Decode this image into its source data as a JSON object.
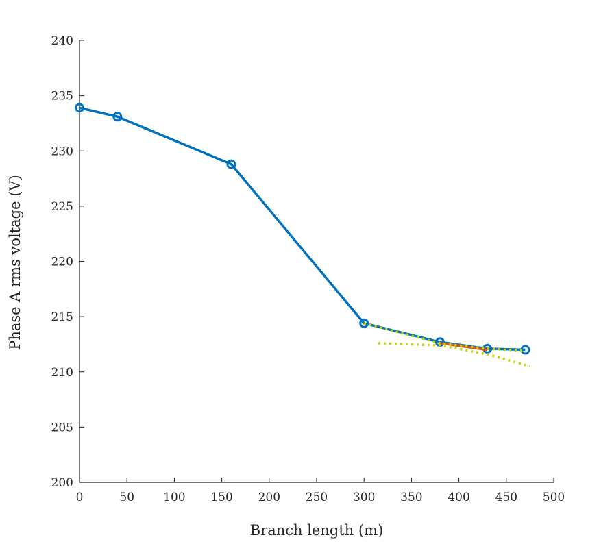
{
  "chart_data": {
    "type": "line",
    "title": "",
    "xlabel": "Branch length (m)",
    "ylabel": "Phase A rms voltage (V)",
    "xlim": [
      0,
      500
    ],
    "ylim": [
      200,
      240
    ],
    "x_ticks": [
      "0",
      "50",
      "100",
      "150",
      "200",
      "250",
      "300",
      "350",
      "400",
      "450",
      "500"
    ],
    "y_ticks": [
      "200",
      "205",
      "210",
      "215",
      "220",
      "225",
      "230",
      "235",
      "240"
    ],
    "grid": false,
    "legend": "none",
    "series": [
      {
        "color": "#0072BD",
        "style": "solid",
        "markers": "circle",
        "x": [
          0,
          40,
          160,
          300,
          380,
          430,
          470
        ],
        "y": [
          233.9,
          233.1,
          228.8,
          214.4,
          212.7,
          212.1,
          212.0
        ]
      },
      {
        "color": "#D95319",
        "style": "solid",
        "markers": "none",
        "x": [
          380,
          430
        ],
        "y": [
          212.6,
          212.0
        ]
      },
      {
        "color": "#C8D400",
        "style": "dotted",
        "markers": "none",
        "x": [
          300,
          380,
          430,
          470
        ],
        "y": [
          214.4,
          212.6,
          212.1,
          211.9
        ]
      },
      {
        "color": "#C8D400",
        "style": "dotted",
        "markers": "none",
        "x": [
          315,
          380,
          430,
          475
        ],
        "y": [
          212.6,
          212.4,
          211.6,
          210.5
        ]
      }
    ]
  }
}
